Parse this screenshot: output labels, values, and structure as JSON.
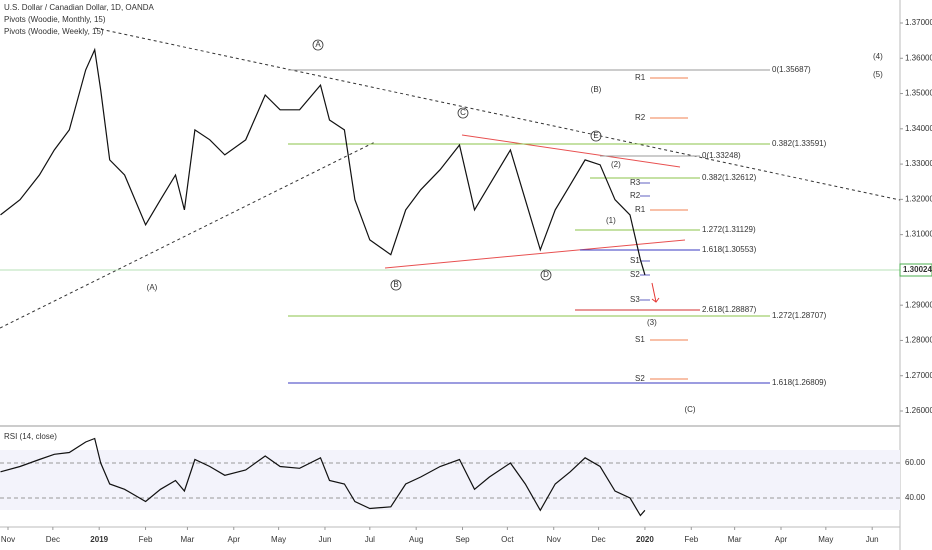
{
  "header": {
    "title": "U.S. Dollar / Canadian Dollar, 1D, OANDA",
    "indicator_1": "Pivots (Woodie, Monthly, 15)",
    "indicator_2": "Pivots (Woodie, Weekly, 15)"
  },
  "chart_data": [
    {
      "type": "line",
      "color": "#111111",
      "x": [
        -5,
        8,
        21,
        31,
        41,
        52,
        58,
        62,
        68,
        78,
        92,
        102,
        112,
        118,
        125,
        135,
        145,
        159,
        172,
        182,
        195,
        209,
        215,
        225,
        232,
        242,
        256,
        266,
        276,
        289,
        302,
        312,
        322,
        336,
        346,
        356,
        366,
        376,
        386,
        396,
        406,
        416,
        423,
        426
      ],
      "values": [
        1.3156,
        1.3199,
        1.3269,
        1.334,
        1.3397,
        1.3567,
        1.3624,
        1.351,
        1.3312,
        1.3269,
        1.3128,
        1.3199,
        1.3269,
        1.317,
        1.3397,
        1.3369,
        1.3326,
        1.3369,
        1.3496,
        1.3454,
        1.3454,
        1.3524,
        1.3425,
        1.3397,
        1.3199,
        1.3085,
        1.3043,
        1.317,
        1.3227,
        1.3284,
        1.3354,
        1.317,
        1.3241,
        1.334,
        1.3199,
        1.3057,
        1.317,
        1.3241,
        1.3312,
        1.3298,
        1.3199,
        1.3156,
        1.3029,
        1.2986
      ],
      "last_price_label": "1.30024",
      "ylim": [
        1.25603,
        1.37652
      ],
      "yticks": [
        {
          "value": 1.26,
          "label": "1.26000"
        },
        {
          "value": 1.27,
          "label": "1.27000"
        },
        {
          "value": 1.28,
          "label": "1.28000"
        },
        {
          "value": 1.29,
          "label": "1.29000"
        },
        {
          "value": 1.3,
          "label": "1.30000"
        },
        {
          "value": 1.31,
          "label": "1.31000"
        },
        {
          "value": 1.32,
          "label": "1.32000"
        },
        {
          "value": 1.33,
          "label": "1.33000"
        },
        {
          "value": 1.34,
          "label": "1.34000"
        },
        {
          "value": 1.35,
          "label": "1.35000"
        },
        {
          "value": 1.36,
          "label": "1.36000"
        },
        {
          "value": 1.37,
          "label": "1.37000"
        }
      ],
      "xlim": [
        -5.35,
        596.6
      ],
      "xticks": [
        {
          "value": 0,
          "label": "Nov"
        },
        {
          "value": 30,
          "label": "Dec"
        },
        {
          "value": 61,
          "label": "2019"
        },
        {
          "value": 92,
          "label": "Feb"
        },
        {
          "value": 120,
          "label": "Mar"
        },
        {
          "value": 151,
          "label": "Apr"
        },
        {
          "value": 181,
          "label": "May"
        },
        {
          "value": 212,
          "label": "Jun"
        },
        {
          "value": 242,
          "label": "Jul"
        },
        {
          "value": 273,
          "label": "Aug"
        },
        {
          "value": 304,
          "label": "Sep"
        },
        {
          "value": 334,
          "label": "Oct"
        },
        {
          "value": 365,
          "label": "Nov"
        },
        {
          "value": 395,
          "label": "Dec"
        },
        {
          "value": 426,
          "label": "2020"
        },
        {
          "value": 457,
          "label": "Feb"
        },
        {
          "value": 486,
          "label": "Mar"
        },
        {
          "value": 517,
          "label": "Apr"
        },
        {
          "value": 547,
          "label": "May"
        },
        {
          "value": 578,
          "label": "Jun"
        }
      ],
      "annotations": [
        "A",
        "C",
        "E",
        "B",
        "D",
        "(A)",
        "(B)",
        "(C)",
        "(1)",
        "(2)",
        "(3)",
        "(4)",
        "(5)",
        "0(1.35687)",
        "R1",
        "R2",
        "0.382(1.33591)",
        "0(1.33248)",
        "0.382(1.32612)",
        "R3",
        "R2",
        "R1",
        "1.272(1.31129)",
        "1.618(1.30553)",
        "S1",
        "S2",
        "S3",
        "2.618(1.28887)",
        "1.272(1.28707)",
        "S1",
        "S2",
        "1.618(1.26809)"
      ]
    },
    {
      "type": "line",
      "title": "RSI (14, close)",
      "color": "#111111",
      "x": [
        -5,
        8,
        21,
        31,
        41,
        52,
        58,
        62,
        68,
        78,
        92,
        102,
        112,
        118,
        125,
        135,
        145,
        159,
        172,
        182,
        195,
        209,
        215,
        225,
        232,
        242,
        256,
        266,
        276,
        289,
        302,
        312,
        322,
        336,
        346,
        356,
        366,
        376,
        386,
        396,
        406,
        416,
        423,
        426
      ],
      "values": [
        55,
        58,
        62,
        65,
        66,
        72,
        74,
        60,
        48,
        45,
        38,
        45,
        50,
        44,
        62,
        58,
        53,
        56,
        64,
        58,
        57,
        63,
        50,
        48,
        38,
        34,
        35,
        48,
        52,
        58,
        62,
        45,
        52,
        60,
        48,
        33,
        48,
        55,
        63,
        58,
        44,
        40,
        30,
        33
      ],
      "ylim": [
        24.6,
        80
      ],
      "yticks": [
        {
          "value": 40,
          "label": "40.00"
        },
        {
          "value": 60,
          "label": "60.00"
        }
      ],
      "xlim": [
        -5.35,
        596.6
      ]
    }
  ]
}
